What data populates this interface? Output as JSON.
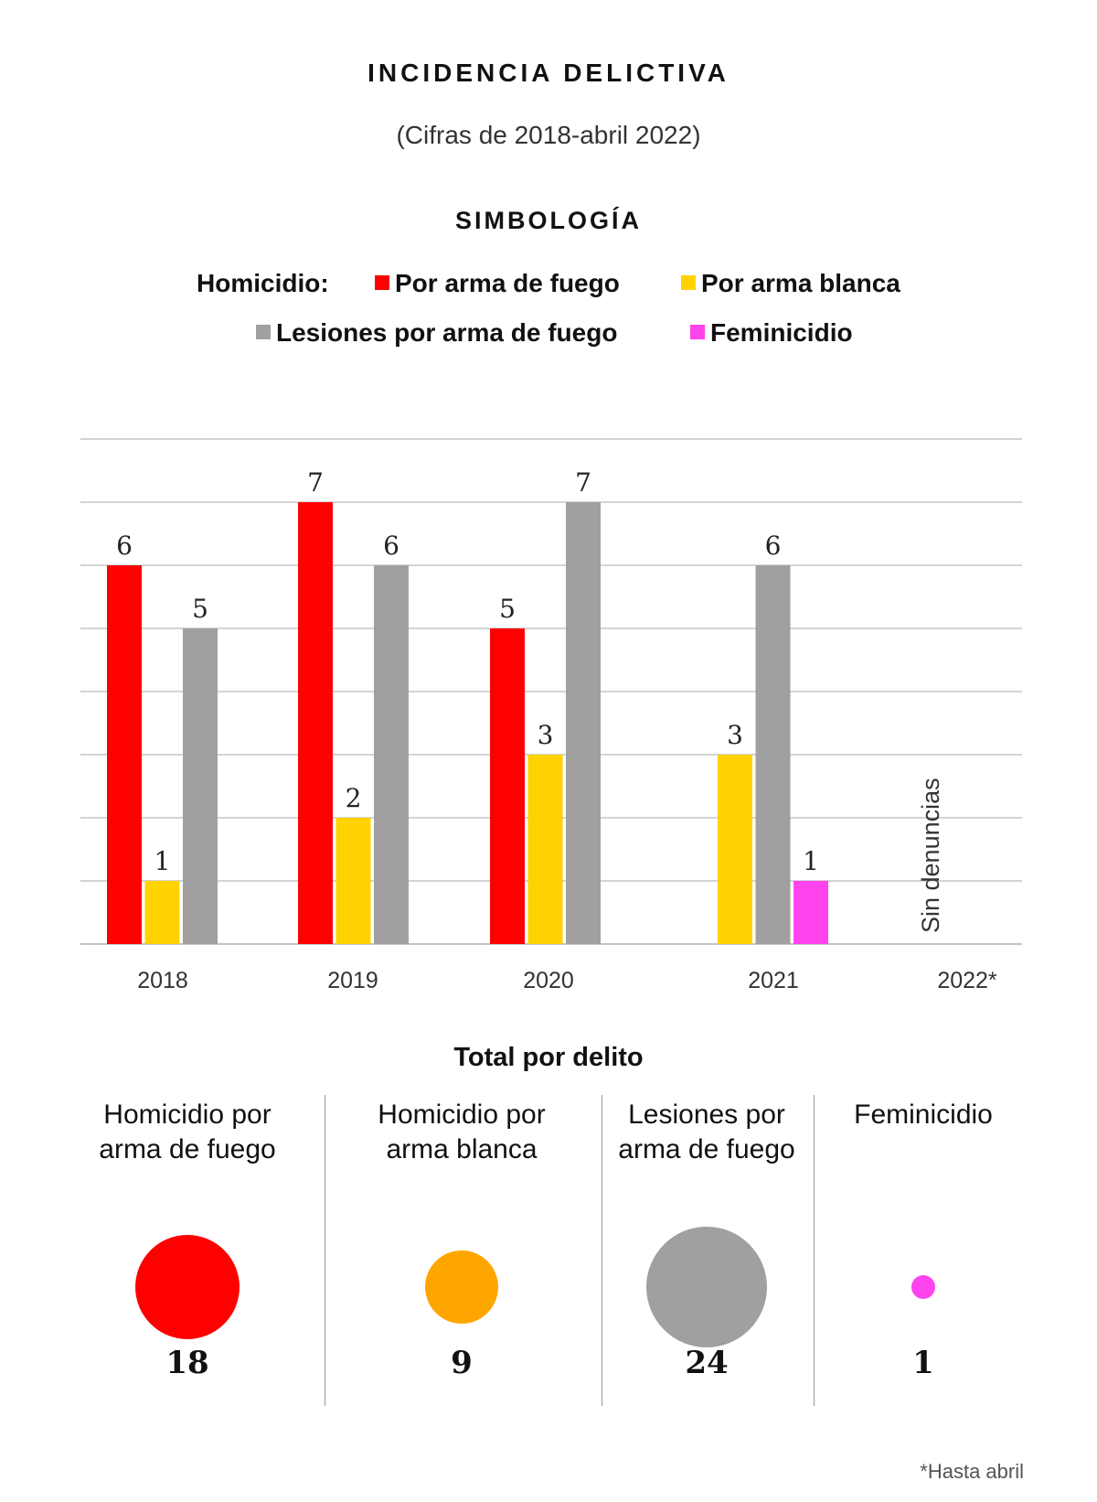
{
  "header": {
    "title": "INCIDENCIA DELICTIVA",
    "subtitle": "(Cifras de 2018-abril 2022)"
  },
  "legend": {
    "title": "SIMBOLOGÍA",
    "group_label": "Homicidio:",
    "items": [
      {
        "label": "Por arma de fuego",
        "color": "#ff0000"
      },
      {
        "label": "Por arma blanca",
        "color": "#ffd200"
      },
      {
        "label": "Lesiones por arma de fuego",
        "color": "#a0a0a0"
      },
      {
        "label": "Feminicidio",
        "color": "#ff44ee"
      }
    ]
  },
  "chart_data": {
    "type": "bar",
    "categories": [
      "2018",
      "2019",
      "2020",
      "2021",
      "2022*"
    ],
    "series": [
      {
        "name": "Por arma de fuego",
        "color": "#ff0000",
        "values": [
          6,
          7,
          5,
          null,
          null
        ]
      },
      {
        "name": "Por arma blanca",
        "color": "#ffd200",
        "values": [
          1,
          2,
          3,
          3,
          null
        ]
      },
      {
        "name": "Lesiones por arma de fuego",
        "color": "#a0a0a0",
        "values": [
          5,
          6,
          7,
          6,
          null
        ]
      },
      {
        "name": "Feminicidio",
        "color": "#ff44ee",
        "values": [
          null,
          null,
          null,
          1,
          null
        ]
      }
    ],
    "ylim": [
      0,
      8
    ],
    "grid": true,
    "annotation": "Sin denuncias"
  },
  "totals": {
    "title": "Total por delito",
    "items": [
      {
        "label": [
          "Homicidio por",
          "arma de fuego"
        ],
        "value": 18,
        "color": "#ff0000"
      },
      {
        "label": [
          "Homicidio por",
          "arma blanca"
        ],
        "value": 9,
        "color": "#ffa500"
      },
      {
        "label": [
          "Lesiones por",
          "arma de fuego"
        ],
        "value": 24,
        "color": "#a0a0a0"
      },
      {
        "label": [
          "Feminicidio"
        ],
        "value": 1,
        "color": "#ff44ee"
      }
    ]
  },
  "footnote": "*Hasta abril"
}
